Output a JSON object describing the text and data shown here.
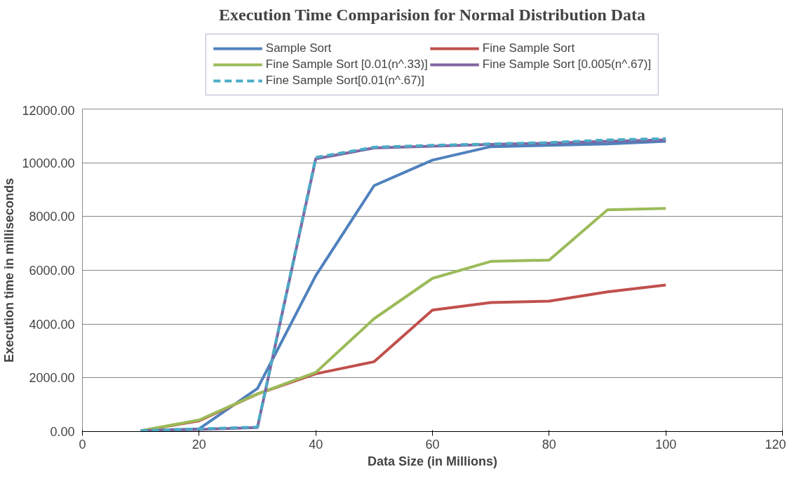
{
  "chart_data": {
    "type": "line",
    "title": "Execution Time Comparision for Normal Distribution Data",
    "xlabel": "Data Size (in Millions)",
    "ylabel": "Execution time in milliseconds",
    "x": [
      10,
      20,
      30,
      40,
      50,
      60,
      70,
      80,
      90,
      100
    ],
    "series": [
      {
        "name": "Sample Sort",
        "color": "#4f81bd",
        "values": [
          30,
          100,
          1600,
          5800,
          9150,
          10100,
          10600,
          10650,
          10700,
          10800
        ]
      },
      {
        "name": "Fine Sample Sort",
        "color": "#c0504d",
        "values": [
          30,
          400,
          1400,
          2150,
          2600,
          4520,
          4800,
          4850,
          5200,
          5450
        ]
      },
      {
        "name": "Fine Sample Sort [0.01(n^.33)]",
        "color": "#9bbb59",
        "values": [
          30,
          430,
          1400,
          2200,
          4200,
          5700,
          6330,
          6380,
          8250,
          8300
        ]
      },
      {
        "name": "Fine Sample Sort [0.005(n^.67)]",
        "color": "#8064a2",
        "values": [
          30,
          80,
          150,
          10150,
          10550,
          10620,
          10680,
          10730,
          10800,
          10850
        ]
      },
      {
        "name": "Fine Sample Sort[0.01(n^.67)]",
        "color": "#4bacc6",
        "line_style": "dashed",
        "values": [
          30,
          100,
          170,
          10200,
          10580,
          10650,
          10700,
          10750,
          10850,
          10900
        ]
      }
    ],
    "xlim": [
      0,
      120
    ],
    "xticks": [
      0,
      20,
      40,
      60,
      80,
      100,
      120
    ],
    "ylim": [
      0,
      12000
    ],
    "yticks": [
      {
        "value": 0,
        "label": "0.00"
      },
      {
        "value": 2000,
        "label": "2000.00"
      },
      {
        "value": 4000,
        "label": "4000.00"
      },
      {
        "value": 6000,
        "label": "6000.00"
      },
      {
        "value": 8000,
        "label": "8000.00"
      },
      {
        "value": 10000,
        "label": "10000.00"
      },
      {
        "value": 12000,
        "label": "12000.00"
      }
    ],
    "grid": "y",
    "legend": "top",
    "marker": "none",
    "line_style": "solid"
  }
}
